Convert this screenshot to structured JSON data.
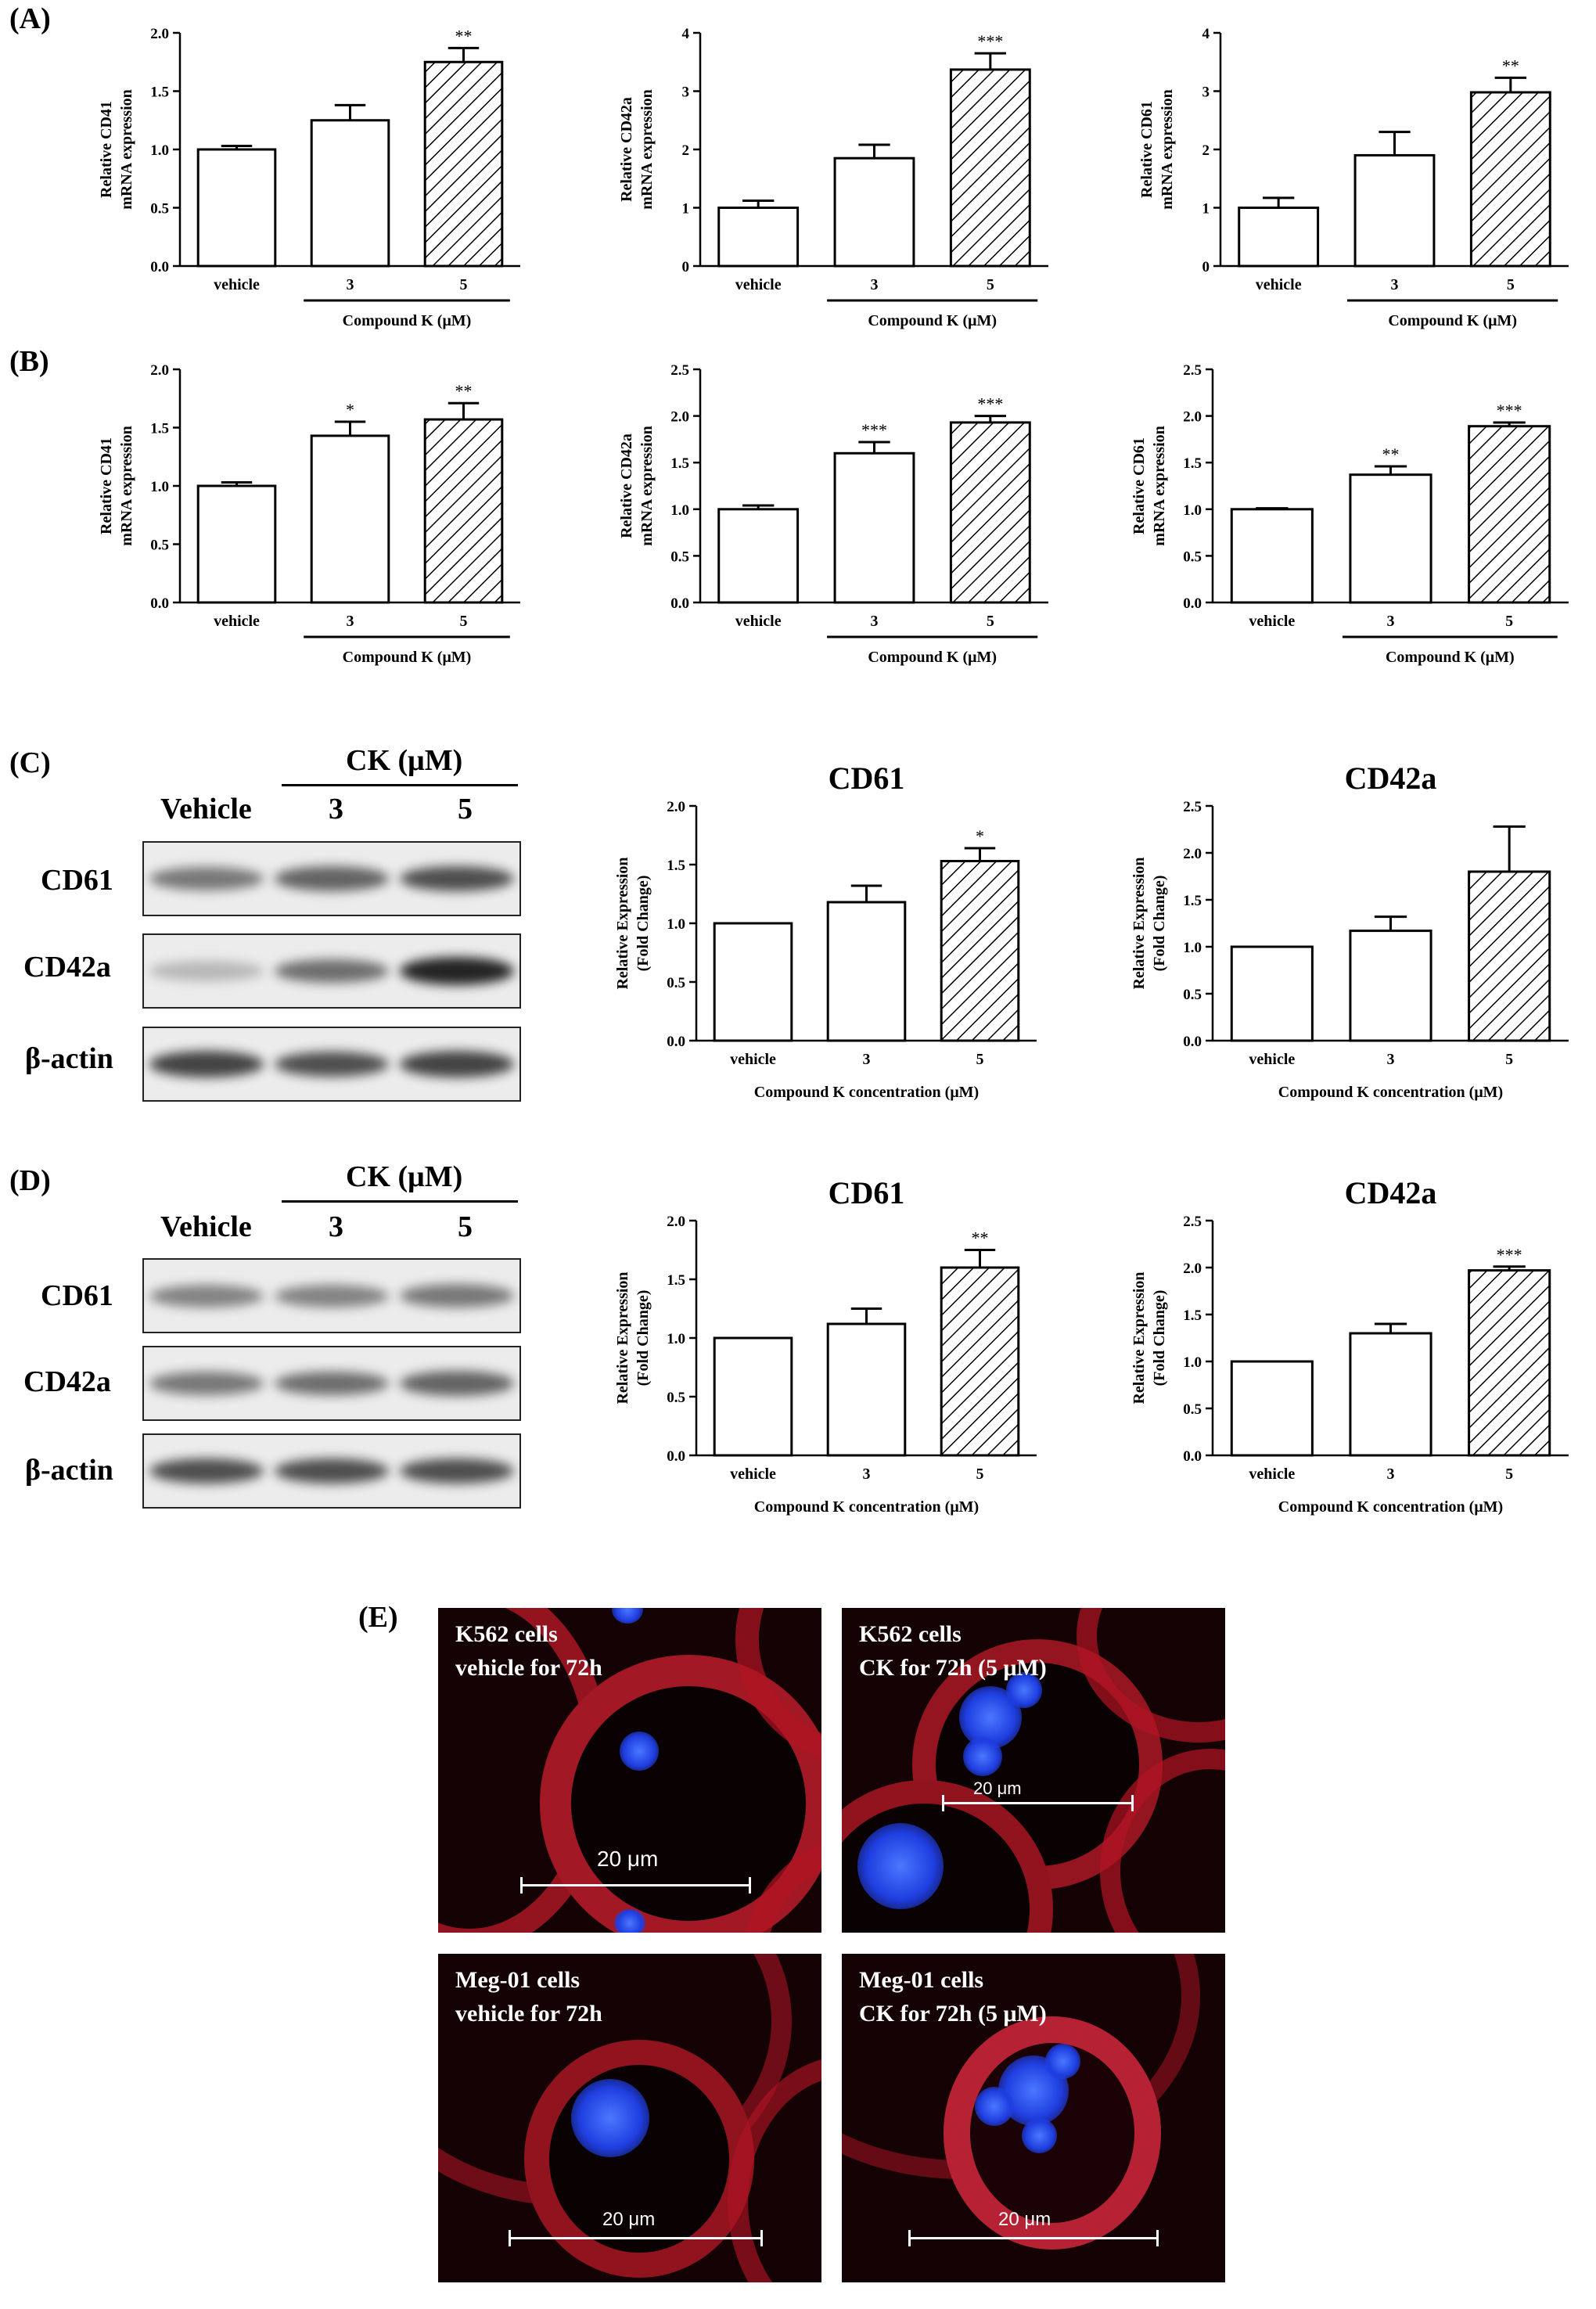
{
  "panels": {
    "a": "(A)",
    "b": "(B)",
    "c": "(C)",
    "d": "(D)",
    "e": "(E)"
  },
  "colors": {
    "bar_vehicle": "#ffffff",
    "bar_3": "#ffffff",
    "bar_5_hatch": "#000000",
    "nucleus": "#2040ff",
    "membrane": "#c8102e"
  },
  "chart_data": [
    {
      "id": "A1",
      "panel": "(A)",
      "type": "bar",
      "categories": [
        "vehicle",
        "3",
        "5"
      ],
      "values": [
        1.0,
        1.25,
        1.75
      ],
      "errors": [
        0.03,
        0.13,
        0.12
      ],
      "annotations": [
        "",
        "",
        "**"
      ],
      "ylabel": [
        "Relative CD41",
        "mRNA expression"
      ],
      "xlabel": "Compound K (μM)",
      "ylim": [
        0,
        2.0
      ],
      "yticks": [
        "0.0",
        "0.5",
        "1.0",
        "1.5",
        "2.0"
      ]
    },
    {
      "id": "A2",
      "panel": "(A)",
      "type": "bar",
      "categories": [
        "vehicle",
        "3",
        "5"
      ],
      "values": [
        1.0,
        1.85,
        3.37
      ],
      "errors": [
        0.12,
        0.23,
        0.28
      ],
      "annotations": [
        "",
        "",
        "***"
      ],
      "ylabel": [
        "Relative CD42a",
        "mRNA expression"
      ],
      "xlabel": "Compound K (μM)",
      "ylim": [
        0,
        4
      ],
      "yticks": [
        "0",
        "1",
        "2",
        "3",
        "4"
      ]
    },
    {
      "id": "A3",
      "panel": "(A)",
      "type": "bar",
      "categories": [
        "vehicle",
        "3",
        "5"
      ],
      "values": [
        1.0,
        1.9,
        2.98
      ],
      "errors": [
        0.17,
        0.4,
        0.25
      ],
      "annotations": [
        "",
        "",
        "**"
      ],
      "ylabel": [
        "Relative CD61",
        "mRNA expression"
      ],
      "xlabel": "Compound K (μM)",
      "ylim": [
        0,
        4
      ],
      "yticks": [
        "0",
        "1",
        "2",
        "3",
        "4"
      ]
    },
    {
      "id": "B1",
      "panel": "(B)",
      "type": "bar",
      "categories": [
        "vehicle",
        "3",
        "5"
      ],
      "values": [
        1.0,
        1.43,
        1.57
      ],
      "errors": [
        0.03,
        0.12,
        0.14
      ],
      "annotations": [
        "",
        "*",
        "**"
      ],
      "ylabel": [
        "Relative CD41",
        "mRNA expression"
      ],
      "xlabel": "Compound K (μM)",
      "ylim": [
        0,
        2.0
      ],
      "yticks": [
        "0.0",
        "0.5",
        "1.0",
        "1.5",
        "2.0"
      ]
    },
    {
      "id": "B2",
      "panel": "(B)",
      "type": "bar",
      "categories": [
        "vehicle",
        "3",
        "5"
      ],
      "values": [
        1.0,
        1.6,
        1.93
      ],
      "errors": [
        0.04,
        0.12,
        0.07
      ],
      "annotations": [
        "",
        "***",
        "***"
      ],
      "ylabel": [
        "Relative CD42a",
        "mRNA expression"
      ],
      "xlabel": "Compound K (μM)",
      "ylim": [
        0,
        2.5
      ],
      "yticks": [
        "0.0",
        "0.5",
        "1.0",
        "1.5",
        "2.0",
        "2.5"
      ]
    },
    {
      "id": "B3",
      "panel": "(B)",
      "type": "bar",
      "categories": [
        "vehicle",
        "3",
        "5"
      ],
      "values": [
        1.0,
        1.37,
        1.89
      ],
      "errors": [
        0.01,
        0.09,
        0.04
      ],
      "annotations": [
        "",
        "**",
        "***"
      ],
      "ylabel": [
        "Relative CD61",
        "mRNA expression"
      ],
      "xlabel": "Compound K (μM)",
      "ylim": [
        0,
        2.5
      ],
      "yticks": [
        "0.0",
        "0.5",
        "1.0",
        "1.5",
        "2.0",
        "2.5"
      ]
    },
    {
      "id": "C1",
      "panel": "(C)",
      "type": "bar",
      "title": "CD61",
      "categories": [
        "vehicle",
        "3",
        "5"
      ],
      "values": [
        1.0,
        1.18,
        1.53
      ],
      "errors": [
        0.0,
        0.14,
        0.11
      ],
      "annotations": [
        "",
        "",
        "*"
      ],
      "ylabel": [
        "Relative Expression",
        "(Fold Change)"
      ],
      "xlabel": "Compound K concentration (μM)",
      "ylim": [
        0,
        2.0
      ],
      "yticks": [
        "0.0",
        "0.5",
        "1.0",
        "1.5",
        "2.0"
      ]
    },
    {
      "id": "C2",
      "panel": "(C)",
      "type": "bar",
      "title": "CD42a",
      "categories": [
        "vehicle",
        "3",
        "5"
      ],
      "values": [
        1.0,
        1.17,
        1.8
      ],
      "errors": [
        0.0,
        0.15,
        0.48
      ],
      "annotations": [
        "",
        "",
        ""
      ],
      "ylabel": [
        "Relative Expression",
        "(Fold Change)"
      ],
      "xlabel": "Compound K concentration (μM)",
      "ylim": [
        0,
        2.5
      ],
      "yticks": [
        "0.0",
        "0.5",
        "1.0",
        "1.5",
        "2.0",
        "2.5"
      ]
    },
    {
      "id": "D1",
      "panel": "(D)",
      "type": "bar",
      "title": "CD61",
      "categories": [
        "vehicle",
        "3",
        "5"
      ],
      "values": [
        1.0,
        1.12,
        1.6
      ],
      "errors": [
        0.0,
        0.13,
        0.15
      ],
      "annotations": [
        "",
        "",
        "**"
      ],
      "ylabel": [
        "Relative Expression",
        "(Fold Change)"
      ],
      "xlabel": "Compound K concentration (μM)",
      "ylim": [
        0,
        2.0
      ],
      "yticks": [
        "0.0",
        "0.5",
        "1.0",
        "1.5",
        "2.0"
      ]
    },
    {
      "id": "D2",
      "panel": "(D)",
      "type": "bar",
      "title": "CD42a",
      "categories": [
        "vehicle",
        "3",
        "5"
      ],
      "values": [
        1.0,
        1.3,
        1.97
      ],
      "errors": [
        0.0,
        0.1,
        0.04
      ],
      "annotations": [
        "",
        "",
        "***"
      ],
      "ylabel": [
        "Relative Expression",
        "(Fold Change)"
      ],
      "xlabel": "Compound K concentration (μM)",
      "ylim": [
        0,
        2.5
      ],
      "yticks": [
        "0.0",
        "0.5",
        "1.0",
        "1.5",
        "2.0",
        "2.5"
      ]
    }
  ],
  "blots": {
    "C": {
      "header": "CK (μM)",
      "lanes": [
        "Vehicle",
        "3",
        "5"
      ],
      "rows": [
        "CD61",
        "CD42a",
        "β-actin"
      ],
      "intensity": [
        [
          0.55,
          0.65,
          0.75
        ],
        [
          0.25,
          0.6,
          0.95
        ],
        [
          0.8,
          0.75,
          0.8
        ]
      ]
    },
    "D": {
      "header": "CK (μM)",
      "lanes": [
        "Vehicle",
        "3",
        "5"
      ],
      "rows": [
        "CD61",
        "CD42a",
        "β-actin"
      ],
      "intensity": [
        [
          0.5,
          0.5,
          0.55
        ],
        [
          0.55,
          0.6,
          0.65
        ],
        [
          0.75,
          0.75,
          0.75
        ]
      ]
    }
  },
  "micrographs": [
    {
      "caption": "K562 cells\nvehicle for 72h",
      "scale": "20 μm"
    },
    {
      "caption": "K562 cells\nCK for 72h (5 μM)",
      "scale": "20 μm"
    },
    {
      "caption": "Meg-01 cells\nvehicle for 72h",
      "scale": "20 μm"
    },
    {
      "caption": "Meg-01 cells\nCK for 72h (5 μM)",
      "scale": "20 μm"
    }
  ]
}
